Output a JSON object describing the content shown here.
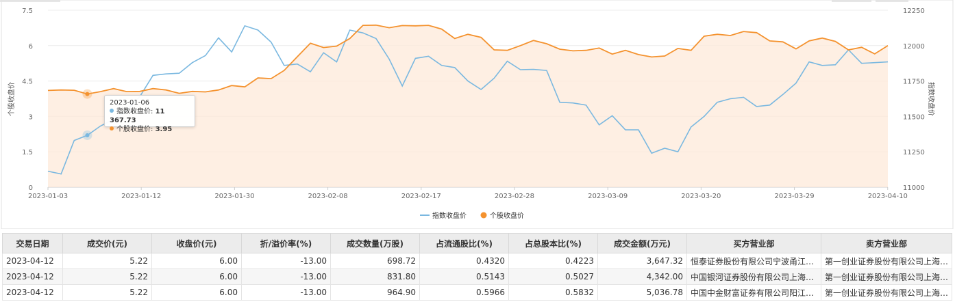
{
  "chart_data": {
    "type": "line",
    "x_ticks": [
      "2023-01-03",
      "2023-01-12",
      "2023-01-30",
      "2023-02-08",
      "2023-02-17",
      "2023-02-28",
      "2023-03-09",
      "2023-03-20",
      "2023-03-29",
      "2023-04-10"
    ],
    "y_left": {
      "label": "个股收盘价",
      "ticks": [
        "7.5",
        "6",
        "4.5",
        "3",
        "1.5",
        "0"
      ],
      "range": [
        0,
        7.5
      ]
    },
    "y_right": {
      "label": "指数收盘价",
      "ticks": [
        "12250",
        "12000",
        "11750",
        "11500",
        "11250",
        "11000"
      ],
      "range": [
        11000,
        12250
      ]
    },
    "legend": {
      "placement": "bottom-center"
    },
    "series": [
      {
        "name": "指数收盘价",
        "axis": "right",
        "color": "#7ab8e0",
        "values": [
          11113,
          11093,
          11330,
          11367,
          11432,
          11480,
          11540,
          11640,
          11790,
          11800,
          11805,
          11880,
          11930,
          12055,
          11955,
          12140,
          12110,
          12025,
          11860,
          11870,
          11815,
          11950,
          11885,
          12110,
          12090,
          12050,
          11905,
          11715,
          11910,
          11925,
          11860,
          11845,
          11750,
          11690,
          11770,
          11890,
          11830,
          11832,
          11825,
          11600,
          11595,
          11580,
          11440,
          11505,
          11405,
          11405,
          11240,
          11275,
          11250,
          11425,
          11500,
          11600,
          11625,
          11635,
          11570,
          11580,
          11655,
          11735,
          11885,
          11860,
          11865,
          11970,
          11875,
          11880,
          11885
        ]
      },
      {
        "name": "个股收盘价",
        "axis": "left",
        "color": "#f4922e",
        "values": [
          4.1,
          4.12,
          4.11,
          3.95,
          4.05,
          4.18,
          4.05,
          4.06,
          4.18,
          4.12,
          3.98,
          4.06,
          4.04,
          4.12,
          4.31,
          4.25,
          4.63,
          4.6,
          4.95,
          5.53,
          6.1,
          5.92,
          5.98,
          6.3,
          6.86,
          6.87,
          6.76,
          6.85,
          6.84,
          6.86,
          6.7,
          6.3,
          6.48,
          6.35,
          5.82,
          5.8,
          6.0,
          6.22,
          6.08,
          5.85,
          5.78,
          5.8,
          5.9,
          5.64,
          5.8,
          5.62,
          5.52,
          5.56,
          5.88,
          5.8,
          6.4,
          6.48,
          6.43,
          6.6,
          6.55,
          6.2,
          6.16,
          5.86,
          6.2,
          6.32,
          6.18,
          5.82,
          5.93,
          5.65,
          6.0
        ]
      }
    ],
    "tooltip": {
      "date": "2023-01-06",
      "index_label": "指数收盘价:",
      "index_value": "11 367.73",
      "stock_label": "个股收盘价:",
      "stock_value": "3.95"
    }
  },
  "table": {
    "headers": [
      "交易日期",
      "成交价(元)",
      "收盘价(元)",
      "折/溢价率(%)",
      "成交数量(万股)",
      "占流通股比(%)",
      "占总股本比(%)",
      "成交金额(万元)",
      "买方营业部",
      "卖方营业部"
    ],
    "rows": [
      [
        "2023-04-12",
        "5.22",
        "6.00",
        "-13.00",
        "698.72",
        "0.4320",
        "0.4223",
        "3,647.32",
        "恒泰证券股份有限公司宁波甬江大…",
        "第一创业证券股份有限公司上海…"
      ],
      [
        "2023-04-12",
        "5.22",
        "6.00",
        "-13.00",
        "831.80",
        "0.5143",
        "0.5027",
        "4,342.00",
        "中国银河证券股份有限公司上海黄…",
        "第一创业证券股份有限公司上海…"
      ],
      [
        "2023-04-12",
        "5.22",
        "6.00",
        "-13.00",
        "964.90",
        "0.5966",
        "0.5832",
        "5,036.78",
        "中国中金财富证券有限公司阳江盈…",
        "第一创业证券股份有限公司上海…"
      ]
    ]
  }
}
